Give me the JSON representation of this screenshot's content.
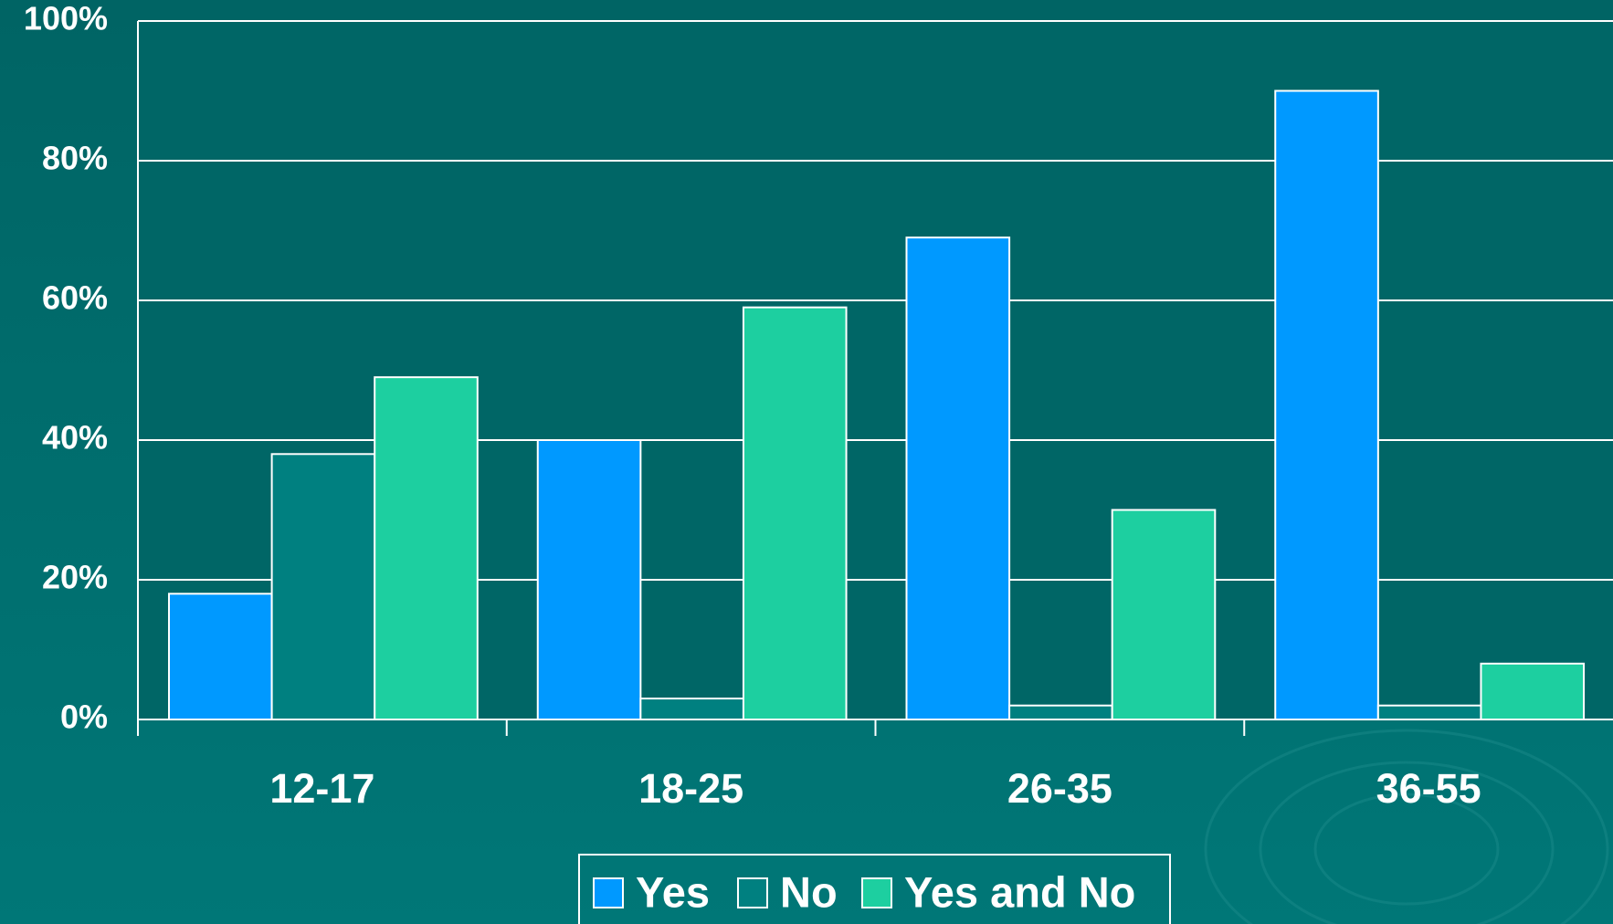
{
  "chart_data": {
    "type": "bar",
    "categories": [
      "12-17",
      "18-25",
      "26-35",
      "36-55"
    ],
    "series": [
      {
        "name": "Yes",
        "color": "#0099ff",
        "values": [
          18,
          40,
          69,
          90
        ]
      },
      {
        "name": "No",
        "color": "#008080",
        "values": [
          38,
          3,
          2,
          2
        ]
      },
      {
        "name": "Yes and No",
        "color": "#1dcfa0",
        "values": [
          49,
          59,
          30,
          8
        ]
      }
    ],
    "ylim": [
      0,
      100
    ],
    "yticks": [
      {
        "value": 0,
        "label": "0%"
      },
      {
        "value": 20,
        "label": "20%"
      },
      {
        "value": 40,
        "label": "40%"
      },
      {
        "value": 60,
        "label": "60%"
      },
      {
        "value": 80,
        "label": "80%"
      },
      {
        "value": 100,
        "label": "100%"
      }
    ],
    "grid": true,
    "legend": "bottom"
  }
}
